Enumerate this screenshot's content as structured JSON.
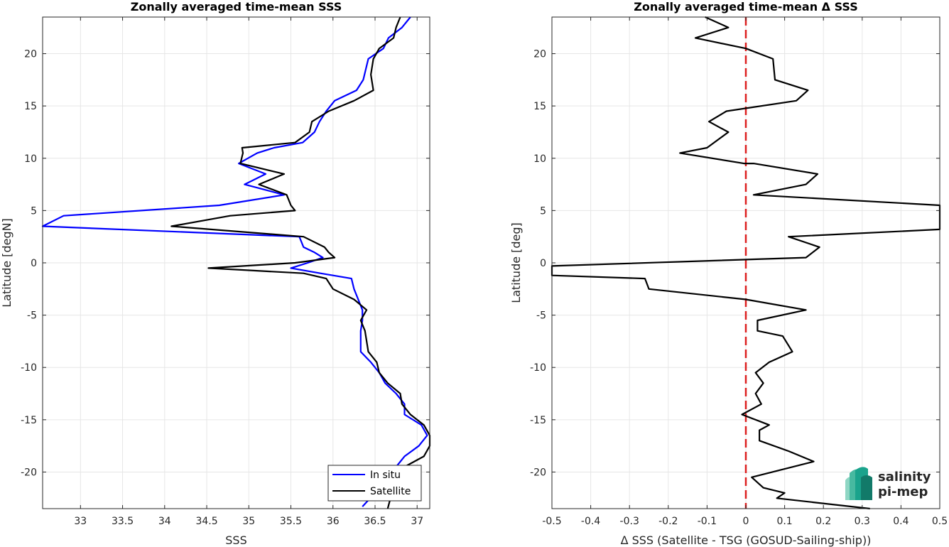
{
  "chart_data": [
    {
      "type": "line",
      "title": "Zonally averaged time-mean SSS",
      "xlabel": "SSS",
      "ylabel": "Latitude [degN]",
      "xlim": [
        32.55,
        37.15
      ],
      "ylim": [
        -23.5,
        23.5
      ],
      "xticks": [
        33,
        33.5,
        34,
        34.5,
        35,
        35.5,
        36,
        36.5,
        37
      ],
      "xtick_labels": [
        "33",
        "33.5",
        "34",
        "34.5",
        "35",
        "35.5",
        "36",
        "36.5",
        "37"
      ],
      "yticks": [
        -20,
        -15,
        -10,
        -5,
        0,
        5,
        10,
        15,
        20
      ],
      "ytick_labels": [
        "-20",
        "-15",
        "-10",
        "-5",
        "0",
        "5",
        "10",
        "15",
        "20"
      ],
      "grid": true,
      "legend_position": "bottom-right",
      "series": [
        {
          "name": "In situ",
          "color": "#0000ff",
          "points": [
            [
              36.92,
              23.5
            ],
            [
              36.82,
              22.5
            ],
            [
              36.66,
              21.5
            ],
            [
              36.6,
              20.5
            ],
            [
              36.42,
              19.5
            ],
            [
              36.36,
              17.5
            ],
            [
              36.28,
              16.5
            ],
            [
              36.02,
              15.5
            ],
            [
              35.92,
              14.5
            ],
            [
              35.84,
              13.5
            ],
            [
              35.78,
              12.5
            ],
            [
              35.64,
              11.5
            ],
            [
              35.3,
              11
            ],
            [
              35.1,
              10.5
            ],
            [
              34.88,
              9.5
            ],
            [
              35.2,
              8.5
            ],
            [
              34.95,
              7.5
            ],
            [
              35.42,
              6.5
            ],
            [
              34.65,
              5.5
            ],
            [
              32.8,
              4.5
            ],
            [
              32.55,
              3.5
            ],
            [
              35.6,
              2.5
            ],
            [
              35.65,
              1.5
            ],
            [
              35.78,
              1
            ],
            [
              35.88,
              0.5
            ],
            [
              35.7,
              0
            ],
            [
              35.5,
              -0.5
            ],
            [
              35.85,
              -1
            ],
            [
              36.22,
              -1.5
            ],
            [
              36.25,
              -2.5
            ],
            [
              36.3,
              -3.5
            ],
            [
              36.35,
              -4.5
            ],
            [
              36.35,
              -5.5
            ],
            [
              36.33,
              -6.5
            ],
            [
              36.33,
              -8.5
            ],
            [
              36.45,
              -9.5
            ],
            [
              36.55,
              -10.5
            ],
            [
              36.62,
              -11.5
            ],
            [
              36.75,
              -12.5
            ],
            [
              36.85,
              -13.5
            ],
            [
              36.85,
              -14.5
            ],
            [
              37.05,
              -15.5
            ],
            [
              37.12,
              -16.5
            ],
            [
              37.02,
              -17.5
            ],
            [
              36.85,
              -18.5
            ],
            [
              36.7,
              -20
            ],
            [
              36.6,
              -21
            ],
            [
              36.5,
              -22
            ],
            [
              36.35,
              -23.3
            ]
          ]
        },
        {
          "name": "Satellite",
          "color": "#000000",
          "points": [
            [
              36.8,
              23.5
            ],
            [
              36.75,
              22.5
            ],
            [
              36.72,
              21.5
            ],
            [
              36.55,
              20.5
            ],
            [
              36.48,
              19.5
            ],
            [
              36.45,
              18
            ],
            [
              36.48,
              16.5
            ],
            [
              36.25,
              15.5
            ],
            [
              35.95,
              14.5
            ],
            [
              35.75,
              13.5
            ],
            [
              35.72,
              12.5
            ],
            [
              35.55,
              11.5
            ],
            [
              34.92,
              11
            ],
            [
              34.93,
              10.5
            ],
            [
              34.9,
              9.5
            ],
            [
              35.42,
              8.5
            ],
            [
              35.12,
              7.5
            ],
            [
              35.45,
              6.5
            ],
            [
              35.5,
              5.5
            ],
            [
              35.55,
              5
            ],
            [
              34.78,
              4.5
            ],
            [
              34.08,
              3.5
            ],
            [
              35.65,
              2.5
            ],
            [
              35.9,
              1.5
            ],
            [
              35.95,
              1
            ],
            [
              36.02,
              0.5
            ],
            [
              35.55,
              0
            ],
            [
              34.52,
              -0.5
            ],
            [
              35.65,
              -1
            ],
            [
              35.92,
              -1.5
            ],
            [
              36.0,
              -2.5
            ],
            [
              36.25,
              -3.5
            ],
            [
              36.4,
              -4.5
            ],
            [
              36.33,
              -5.5
            ],
            [
              36.38,
              -6.5
            ],
            [
              36.42,
              -8.5
            ],
            [
              36.52,
              -9.5
            ],
            [
              36.55,
              -10.5
            ],
            [
              36.65,
              -11.5
            ],
            [
              36.8,
              -12.5
            ],
            [
              36.82,
              -13.5
            ],
            [
              36.92,
              -14.5
            ],
            [
              37.08,
              -15.5
            ],
            [
              37.15,
              -16.5
            ],
            [
              37.15,
              -17.5
            ],
            [
              37.08,
              -18.5
            ],
            [
              36.85,
              -19.5
            ],
            [
              36.75,
              -20.5
            ],
            [
              36.7,
              -22
            ],
            [
              36.65,
              -23.5
            ]
          ]
        }
      ]
    },
    {
      "type": "line",
      "title": "Zonally averaged time-mean Δ SSS",
      "xlabel": "Δ SSS (Satellite - TSG (GOSUD-Sailing-ship))",
      "ylabel": "Latitude [deg]",
      "xlim": [
        -0.5,
        0.5
      ],
      "ylim": [
        -23.5,
        23.5
      ],
      "xticks": [
        -0.5,
        -0.4,
        -0.3,
        -0.2,
        -0.1,
        0,
        0.1,
        0.2,
        0.3,
        0.4,
        0.5
      ],
      "xtick_labels": [
        "-0.5",
        "-0.4",
        "-0.3",
        "-0.2",
        "-0.1",
        "0",
        "0.1",
        "0.2",
        "0.3",
        "0.4",
        "0.5"
      ],
      "yticks": [
        -20,
        -15,
        -10,
        -5,
        0,
        5,
        10,
        15,
        20
      ],
      "ytick_labels": [
        "-20",
        "-15",
        "-10",
        "-5",
        "0",
        "5",
        "10",
        "15",
        "20"
      ],
      "grid": true,
      "zero_line_color": "#dd1f1f",
      "series": [
        {
          "color": "#000000",
          "points": [
            [
              -0.105,
              23.5
            ],
            [
              -0.045,
              22.5
            ],
            [
              -0.13,
              21.5
            ],
            [
              0.0,
              20.5
            ],
            [
              0.07,
              19.5
            ],
            [
              0.075,
              17.5
            ],
            [
              0.16,
              16.5
            ],
            [
              0.13,
              15.5
            ],
            [
              -0.05,
              14.5
            ],
            [
              -0.095,
              13.5
            ],
            [
              -0.045,
              12.5
            ],
            [
              -0.1,
              11
            ],
            [
              -0.17,
              10.5
            ],
            [
              -0.005,
              9.5
            ],
            [
              0.02,
              9.5
            ],
            [
              0.185,
              8.5
            ],
            [
              0.155,
              7.5
            ],
            [
              0.02,
              6.5
            ],
            [
              0.5,
              5.5
            ],
            [
              0.5,
              3.2
            ],
            [
              0.11,
              2.5
            ],
            [
              0.19,
              1.5
            ],
            [
              0.155,
              0.5
            ],
            [
              -0.5,
              -0.3
            ],
            [
              -0.5,
              -1.2
            ],
            [
              -0.26,
              -1.5
            ],
            [
              -0.25,
              -2.5
            ],
            [
              0.0,
              -3.5
            ],
            [
              0.155,
              -4.5
            ],
            [
              0.03,
              -5.5
            ],
            [
              0.03,
              -6.5
            ],
            [
              0.095,
              -7
            ],
            [
              0.12,
              -8.5
            ],
            [
              0.06,
              -9.5
            ],
            [
              0.025,
              -10.5
            ],
            [
              0.045,
              -11.5
            ],
            [
              0.025,
              -12.5
            ],
            [
              0.04,
              -13.5
            ],
            [
              -0.01,
              -14.5
            ],
            [
              0.06,
              -15.5
            ],
            [
              0.035,
              -16
            ],
            [
              0.035,
              -17
            ],
            [
              0.11,
              -18
            ],
            [
              0.175,
              -19
            ],
            [
              0.015,
              -20.5
            ],
            [
              0.045,
              -21.5
            ],
            [
              0.1,
              -22
            ],
            [
              0.08,
              -22.5
            ],
            [
              0.32,
              -23.5
            ]
          ]
        }
      ]
    }
  ],
  "legend": {
    "items": [
      {
        "label": "In situ",
        "color": "#0000ff"
      },
      {
        "label": "Satellite",
        "color": "#000000"
      }
    ]
  },
  "logo": {
    "line1": "salinity",
    "line2": "pi-mep",
    "color": "#1aa38c"
  }
}
